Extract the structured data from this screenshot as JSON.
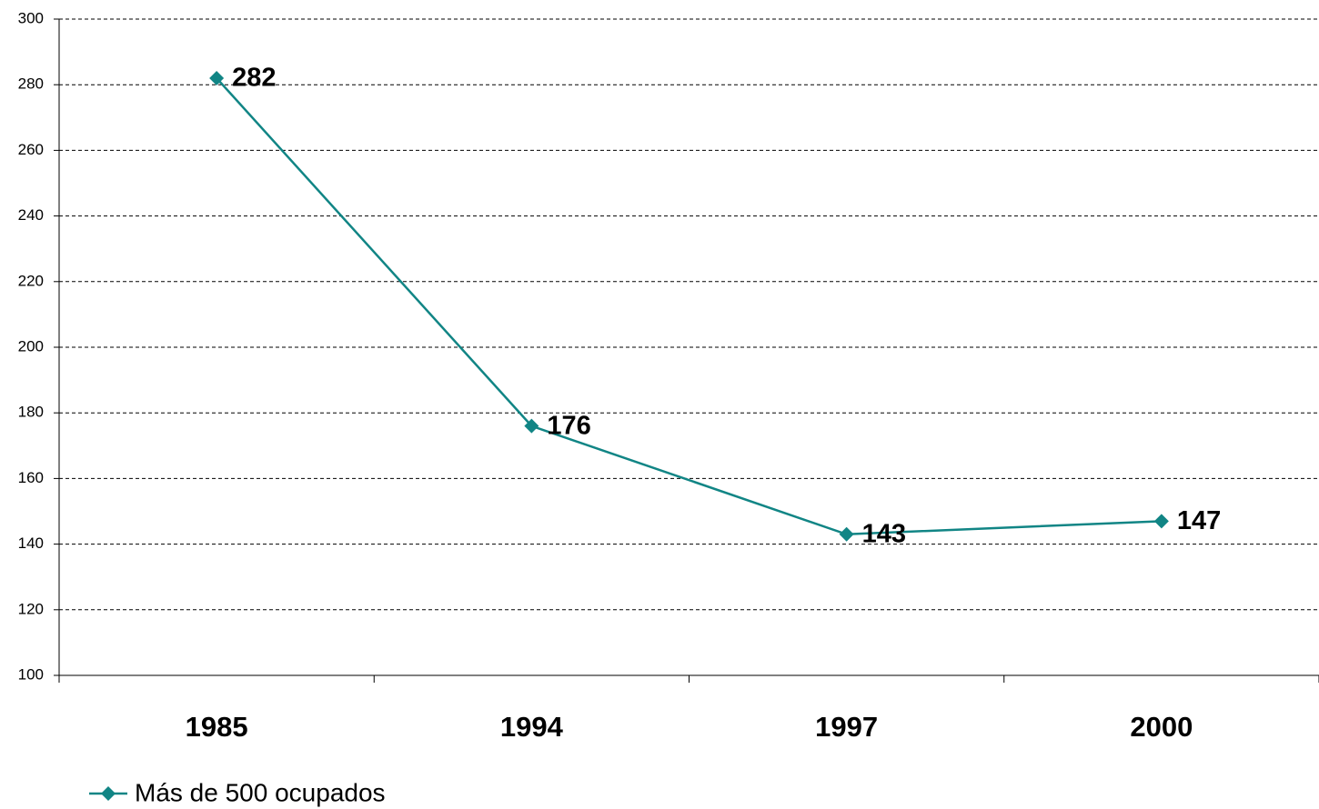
{
  "chart_data": {
    "type": "line",
    "categories": [
      "1985",
      "1994",
      "1997",
      "2000"
    ],
    "series": [
      {
        "name": "Más de 500 ocupados",
        "color": "#118585",
        "values": [
          282,
          176,
          143,
          147
        ]
      }
    ],
    "ylim": [
      100,
      300
    ],
    "yticks": [
      100,
      120,
      140,
      160,
      180,
      200,
      220,
      240,
      260,
      280,
      300
    ],
    "grid": true,
    "legend": "bottom-left"
  }
}
